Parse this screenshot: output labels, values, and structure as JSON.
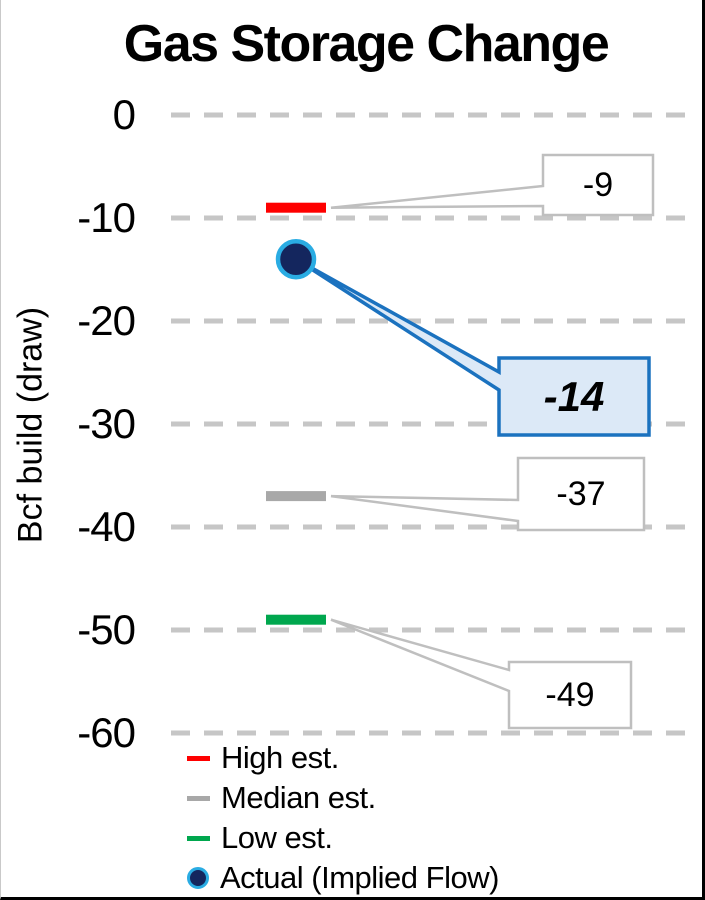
{
  "chart_data": {
    "type": "scatter",
    "title": "Gas Storage Change",
    "ylabel": "Bcf build (draw)",
    "xlabel": "",
    "ylim": [
      -60,
      0
    ],
    "yticks": [
      "0",
      "-10",
      "-20",
      "-30",
      "-40",
      "-50",
      "-60"
    ],
    "ytick_values": [
      0,
      -10,
      -20,
      -30,
      -40,
      -50,
      -60
    ],
    "grid": "horizontal-dashed",
    "legend_position": "bottom-left",
    "series": [
      {
        "name": "High est.",
        "value": -9,
        "label": "-9",
        "marker": "dash",
        "color": "#FE0000",
        "callout_style": "plain"
      },
      {
        "name": "Actual (Implied Flow)",
        "value": -14,
        "label": "-14",
        "marker": "circle",
        "color": "#14265E",
        "ring_color": "#2AACE3",
        "callout_style": "highlight"
      },
      {
        "name": "Median est.",
        "value": -37,
        "label": "-37",
        "marker": "dash",
        "color": "#A8A8A8",
        "callout_style": "plain"
      },
      {
        "name": "Low est.",
        "value": -49,
        "label": "-49",
        "marker": "dash",
        "color": "#00A74E",
        "callout_style": "plain"
      }
    ],
    "legend": [
      {
        "label": "High est.",
        "marker": "dash",
        "color": "#FE0000"
      },
      {
        "label": "Median est.",
        "marker": "dash",
        "color": "#A8A8A8"
      },
      {
        "label": "Low est.",
        "marker": "dash",
        "color": "#00A74E"
      },
      {
        "label": "Actual (Implied Flow)",
        "marker": "circle",
        "color": "#14265E",
        "ring_color": "#2AACE3"
      }
    ]
  },
  "colors": {
    "background": "#FFFFFF",
    "text": "#000000",
    "gridline": "#C6C6C6",
    "callout_fill": "#FFFFFF",
    "callout_border": "#BFBFBF",
    "highlight_fill": "#DCE9F7",
    "highlight_border": "#1B72BF"
  }
}
